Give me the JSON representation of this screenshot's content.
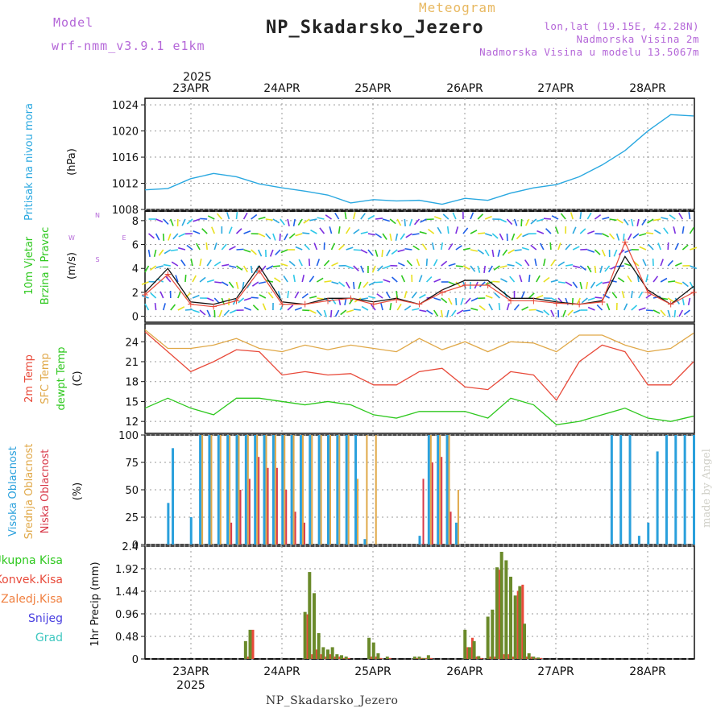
{
  "header": {
    "model_label": "Model",
    "model_name": "wrf-nmm_v3.9.1 e1km",
    "product": "Meteogram",
    "station": "NP_Skadarsko_Jezero",
    "lonlat": "lon,lat (19.15E, 42.28N)",
    "elevation": "Nadmorska Visina 2m",
    "model_elevation": "Nadmorska Visina u modelu 13.5067m"
  },
  "footer": {
    "station": "NP_Skadarsko_Jezero",
    "credit": "made by Angel"
  },
  "colors": {
    "pressure": "#2aa8e0",
    "wind_black": "#111111",
    "wind_red": "#e84a3a",
    "temp2m": "#e84a3a",
    "sfc": "#e0a848",
    "dew": "#2ec81e",
    "high": "#2aa0dc",
    "mid": "#e0a848",
    "low": "#d83a4a",
    "total": "#6a8a2a",
    "konv": "#e84a3a"
  },
  "chart_data": [
    {
      "type": "line",
      "name": "pressure",
      "ylabel": "Pritisak na nivou mora",
      "unit": "(hPa)",
      "ylim": [
        1008,
        1025
      ],
      "yticks": [
        "1008",
        "1012",
        "1016",
        "1020",
        "1024"
      ],
      "x_dates": [
        "23APR",
        "24APR",
        "25APR",
        "26APR",
        "27APR",
        "28APR"
      ],
      "year": "2025",
      "x": [
        0,
        0.25,
        0.5,
        0.75,
        1.0,
        1.25,
        1.5,
        1.75,
        2.0,
        2.25,
        2.5,
        2.75,
        3.0,
        3.25,
        3.5,
        3.75,
        4.0,
        4.25,
        4.5,
        4.75,
        5.0,
        5.25,
        5.5,
        5.75,
        6.0
      ],
      "values": [
        1011.0,
        1011.2,
        1012.7,
        1013.5,
        1013.0,
        1011.9,
        1011.3,
        1010.8,
        1010.2,
        1009.0,
        1009.5,
        1009.3,
        1009.4,
        1008.8,
        1009.7,
        1009.4,
        1010.5,
        1011.3,
        1011.8,
        1013.0,
        1014.8,
        1017.0,
        1020.0,
        1022.5,
        1022.3
      ]
    },
    {
      "type": "line",
      "name": "wind",
      "ylabel": [
        "10m Vjetar",
        "Brzina i Pravac"
      ],
      "unit": "(m/s)",
      "compass": [
        "W",
        "E",
        "N",
        "S"
      ],
      "ylim": [
        -0.5,
        8.8
      ],
      "yticks": [
        "0",
        "2",
        "4",
        "6",
        "8"
      ],
      "x": [
        0,
        0.25,
        0.5,
        0.75,
        1.0,
        1.25,
        1.5,
        1.75,
        2.0,
        2.25,
        2.5,
        2.75,
        3.0,
        3.25,
        3.5,
        3.75,
        4.0,
        4.25,
        4.5,
        4.75,
        5.0,
        5.25,
        5.5,
        5.75,
        6.0
      ],
      "series": [
        {
          "values": [
            2.0,
            4.0,
            1.2,
            1.0,
            1.5,
            4.2,
            1.2,
            1.0,
            1.5,
            1.5,
            1.2,
            1.5,
            1.0,
            2.2,
            3.0,
            3.0,
            1.5,
            1.5,
            1.2,
            1.0,
            1.3,
            5.0,
            2.2,
            1.0,
            2.5
          ]
        },
        {
          "values": [
            1.8,
            3.5,
            1.0,
            0.8,
            1.3,
            3.8,
            1.0,
            1.0,
            1.3,
            1.5,
            1.0,
            1.4,
            1.0,
            2.0,
            2.6,
            2.6,
            1.3,
            1.3,
            1.1,
            1.0,
            1.2,
            6.2,
            2.0,
            1.0,
            2.0
          ]
        }
      ],
      "arrows_x": [
        0.04,
        0.12,
        0.2,
        0.28,
        0.36,
        0.44,
        0.52,
        0.6,
        0.68,
        0.76,
        0.84,
        0.92,
        1.0,
        1.08,
        1.16,
        1.24,
        1.32,
        1.4,
        1.48,
        1.56,
        1.64,
        1.72,
        1.8,
        1.88,
        1.96,
        2.04,
        2.12,
        2.2,
        2.28,
        2.36,
        2.44,
        2.52,
        2.6,
        2.68,
        2.76,
        2.84,
        2.92,
        3.0,
        3.08,
        3.16,
        3.24,
        3.32,
        3.4,
        3.48,
        3.56,
        3.64,
        3.72,
        3.8,
        3.88,
        3.96,
        4.04,
        4.12,
        4.2,
        4.28,
        4.36,
        4.44,
        4.52,
        4.6,
        4.68,
        4.76,
        4.84,
        4.92,
        5.0,
        5.08,
        5.16,
        5.24,
        5.32,
        5.4,
        5.48,
        5.56,
        5.64,
        5.72,
        5.8,
        5.88,
        5.96
      ]
    },
    {
      "type": "line",
      "name": "temperature",
      "ylabel": [
        "2m Temp",
        "SFC Temp",
        "dewpt Temp"
      ],
      "unit": "(C)",
      "ylim": [
        10.2,
        26.7
      ],
      "yticks": [
        "12",
        "15",
        "18",
        "21",
        "24"
      ],
      "x": [
        0,
        0.25,
        0.5,
        0.75,
        1.0,
        1.25,
        1.5,
        1.75,
        2.0,
        2.25,
        2.5,
        2.75,
        3.0,
        3.25,
        3.5,
        3.75,
        4.0,
        4.25,
        4.5,
        4.75,
        5.0,
        5.25,
        5.5,
        5.75,
        6.0
      ],
      "series": [
        {
          "name": "2m Temp",
          "values": [
            25.5,
            22.5,
            19.5,
            21.0,
            22.8,
            22.5,
            19.0,
            19.5,
            19.0,
            19.2,
            17.5,
            17.5,
            19.5,
            20.0,
            17.2,
            16.8,
            19.5,
            19.0,
            15.2,
            21.0,
            23.5,
            22.5,
            17.5,
            17.5,
            21.0
          ]
        },
        {
          "name": "SFC Temp",
          "values": [
            25.8,
            23.0,
            23.0,
            23.5,
            24.5,
            23.0,
            22.5,
            23.5,
            22.8,
            23.5,
            23.0,
            22.5,
            24.5,
            22.8,
            24.0,
            22.5,
            24.0,
            23.8,
            22.5,
            25.0,
            25.0,
            23.5,
            22.5,
            23.0,
            25.3
          ]
        },
        {
          "name": "dewpt Temp",
          "values": [
            14.0,
            15.5,
            14.0,
            13.0,
            15.5,
            15.5,
            15.0,
            14.5,
            15.0,
            14.5,
            13.0,
            12.5,
            13.5,
            13.5,
            13.5,
            12.5,
            15.5,
            14.5,
            11.5,
            12.0,
            13.0,
            14.0,
            12.5,
            12.0,
            12.8
          ]
        }
      ]
    },
    {
      "type": "bar",
      "name": "cloud",
      "ylabel": [
        "Visoka Oblacnost",
        "Srednja Oblacnost",
        "Niska Oblacnost"
      ],
      "unit": "(%)",
      "ylim": [
        0,
        100
      ],
      "yticks": [
        "0",
        "25",
        "50",
        "75",
        "100"
      ],
      "x": [
        0.25,
        0.3,
        0.5,
        0.6,
        0.7,
        0.8,
        0.9,
        1.0,
        1.1,
        1.2,
        1.3,
        1.4,
        1.5,
        1.6,
        1.7,
        1.8,
        1.9,
        2.0,
        2.1,
        2.2,
        2.3,
        2.4,
        2.5,
        2.6,
        2.7,
        2.8,
        2.9,
        3.0,
        3.1,
        3.2,
        3.3,
        3.4,
        3.5,
        3.6,
        3.7,
        3.8,
        3.9,
        4.0,
        5.1,
        5.2,
        5.3,
        5.4,
        5.5,
        5.6,
        5.7,
        5.8,
        5.9,
        6.0
      ],
      "series": [
        {
          "name": "Visoka Oblacnost",
          "values": [
            38,
            88,
            25,
            100,
            100,
            100,
            100,
            100,
            100,
            100,
            100,
            100,
            100,
            100,
            100,
            100,
            100,
            100,
            100,
            100,
            100,
            5,
            0,
            0,
            0,
            0,
            0,
            8,
            100,
            100,
            100,
            20,
            0,
            0,
            0,
            0,
            0,
            0,
            100,
            100,
            100,
            8,
            20,
            85,
            100,
            100,
            100,
            100
          ]
        },
        {
          "name": "Srednja Oblacnost",
          "values": [
            0,
            0,
            0,
            100,
            100,
            100,
            100,
            100,
            100,
            100,
            100,
            100,
            100,
            100,
            100,
            100,
            100,
            100,
            100,
            100,
            60,
            100,
            100,
            0,
            0,
            0,
            0,
            0,
            100,
            100,
            100,
            50,
            0,
            0,
            0,
            0,
            0,
            0,
            0,
            0,
            0,
            0,
            0,
            0,
            0,
            0,
            0,
            0
          ]
        },
        {
          "name": "Niska Oblacnost",
          "values": [
            0,
            0,
            0,
            0,
            0,
            0,
            20,
            50,
            60,
            80,
            70,
            70,
            50,
            30,
            20,
            0,
            0,
            0,
            0,
            0,
            0,
            0,
            0,
            0,
            0,
            0,
            0,
            60,
            75,
            80,
            30,
            0,
            0,
            0,
            0,
            0,
            0,
            0,
            0,
            0,
            0,
            0,
            0,
            0,
            0,
            0,
            0,
            0
          ]
        }
      ]
    },
    {
      "type": "bar",
      "name": "precip",
      "ylabel": "1hr Precip",
      "unit": "(mm)",
      "legend": [
        "Ukupna Kisa",
        "Konvek.Kisa",
        "Zaledj.Kisa",
        "Snijeg",
        "Grad"
      ],
      "ylim": [
        0,
        2.4
      ],
      "yticks": [
        "0",
        "0.48",
        "0.96",
        "1.44",
        "1.92",
        "2.4"
      ],
      "x": [
        1.1,
        1.15,
        1.75,
        1.8,
        1.85,
        1.9,
        1.95,
        2.0,
        2.05,
        2.1,
        2.15,
        2.2,
        2.45,
        2.5,
        2.55,
        2.65,
        2.95,
        3.0,
        3.05,
        3.1,
        3.5,
        3.55,
        3.6,
        3.65,
        3.75,
        3.8,
        3.85,
        3.9,
        3.95,
        4.0,
        4.05,
        4.1,
        4.15,
        4.2,
        4.25,
        4.3
      ],
      "series": [
        {
          "name": "Ukupna Kisa",
          "values": [
            0.38,
            0.62,
            1.0,
            1.85,
            1.4,
            0.55,
            0.25,
            0.2,
            0.25,
            0.1,
            0.08,
            0.05,
            0.45,
            0.35,
            0.12,
            0.05,
            0.05,
            0.05,
            0.02,
            0.08,
            0.62,
            0.25,
            0.38,
            0.06,
            0.9,
            1.05,
            1.95,
            2.28,
            2.1,
            1.75,
            1.35,
            1.55,
            0.75,
            0.12,
            0.05,
            0.03
          ]
        },
        {
          "name": "Konvek.Kisa",
          "values": [
            0.05,
            0.62,
            0.95,
            0.1,
            0.2,
            0.1,
            0.05,
            0.1,
            0.05,
            0.05,
            0.02,
            0.02,
            0.05,
            0.05,
            0.02,
            0.02,
            0.02,
            0.02,
            0.02,
            0.02,
            0.25,
            0.45,
            0.05,
            0.02,
            0.05,
            0.05,
            1.9,
            0.1,
            0.1,
            0.05,
            1.45,
            1.58,
            0.05,
            0.05,
            0.02,
            0.02
          ]
        }
      ]
    }
  ]
}
